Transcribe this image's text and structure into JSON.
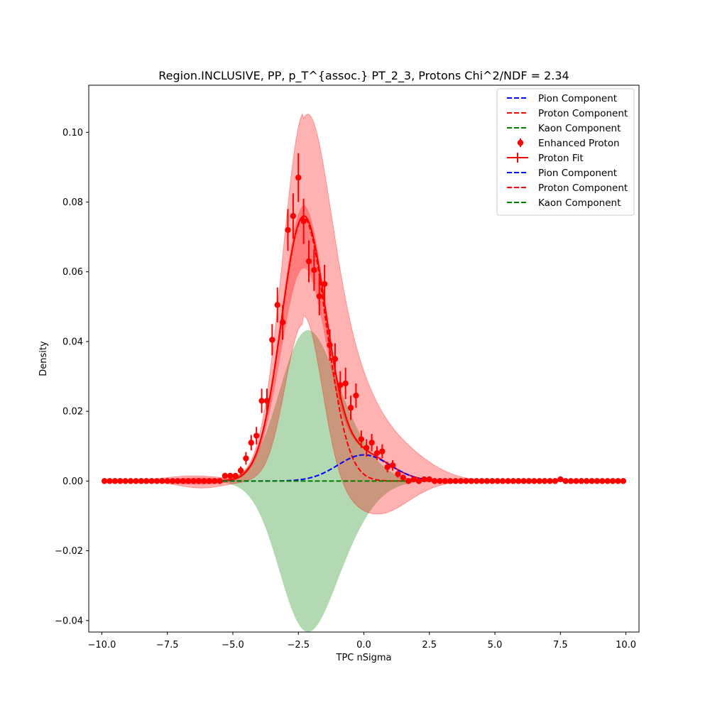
{
  "chart_data": {
    "type": "scatter",
    "title": "Region.INCLUSIVE, PP, p_T^{assoc.} PT_2_3, Protons Chi^2/NDF = 2.34",
    "xlabel": "TPC nSigma",
    "ylabel": "Density",
    "xlim": [
      -10.5,
      10.5
    ],
    "ylim": [
      -0.0433,
      0.1135
    ],
    "x_ticks": [
      -10,
      -7.5,
      -5,
      -2.5,
      0,
      2.5,
      5,
      7.5,
      10
    ],
    "x_tick_labels": [
      "−10.0",
      "−7.5",
      "−5.0",
      "−2.5",
      "0.0",
      "2.5",
      "5.0",
      "7.5",
      "10.0"
    ],
    "y_ticks": [
      -0.04,
      -0.02,
      0,
      0.02,
      0.04,
      0.06,
      0.08,
      0.1
    ],
    "y_tick_labels": [
      "−0.04",
      "−0.02",
      "0.00",
      "0.02",
      "0.04",
      "0.06",
      "0.08",
      "0.10"
    ],
    "grid": false,
    "legend_position": "top-right",
    "legend": [
      {
        "label": "Pion Component",
        "style": "dashed",
        "color": "#0000ff"
      },
      {
        "label": "Proton Component",
        "style": "dashed",
        "color": "#ff0000"
      },
      {
        "label": "Kaon Component",
        "style": "dashed",
        "color": "#008000"
      },
      {
        "label": "Enhanced Proton",
        "style": "marker",
        "color": "#ff0000"
      },
      {
        "label": "Proton Fit",
        "style": "errorline",
        "color": "#ff0000"
      },
      {
        "label": "Pion Component",
        "style": "dashed",
        "color": "#0000ff"
      },
      {
        "label": "Proton Component",
        "style": "dashed",
        "color": "#ff0000"
      },
      {
        "label": "Kaon Component",
        "style": "dashed",
        "color": "#008000"
      }
    ],
    "components": {
      "pion": {
        "amplitude": 0.0075,
        "mean": 0.0,
        "sigma": 1.0,
        "color": "#0000ff"
      },
      "proton": {
        "amplitude": 0.0755,
        "mean": -2.3,
        "sigma": 0.85,
        "color": "#ff0000"
      },
      "kaon": {
        "amplitude": 0.0,
        "mean": -1.5,
        "sigma": 1.0,
        "color": "#008000"
      }
    },
    "bands": {
      "proton_outer_peak": 0.106,
      "kaon_band": {
        "peak": 0.0365,
        "center": -2.0
      },
      "pion_band_peak": 0.0105
    },
    "series": [
      {
        "name": "Enhanced Proton",
        "color": "#ff0000",
        "x": [
          -9.9,
          -9.7,
          -9.5,
          -9.3,
          -9.1,
          -8.9,
          -8.7,
          -8.5,
          -8.3,
          -8.1,
          -7.9,
          -7.7,
          -7.5,
          -7.3,
          -7.1,
          -6.9,
          -6.7,
          -6.5,
          -6.3,
          -6.1,
          -5.9,
          -5.7,
          -5.5,
          -5.3,
          -5.1,
          -4.9,
          -4.7,
          -4.5,
          -4.3,
          -4.1,
          -3.9,
          -3.7,
          -3.5,
          -3.3,
          -3.1,
          -2.9,
          -2.7,
          -2.5,
          -2.3,
          -2.1,
          -1.9,
          -1.7,
          -1.5,
          -1.3,
          -1.1,
          -0.9,
          -0.7,
          -0.5,
          -0.3,
          -0.1,
          0.1,
          0.3,
          0.5,
          0.7,
          0.9,
          1.1,
          1.3,
          1.5,
          1.7,
          1.9,
          2.1,
          2.3,
          2.5,
          2.7,
          2.9,
          3.1,
          3.3,
          3.5,
          3.7,
          3.9,
          4.1,
          4.3,
          4.5,
          4.7,
          4.9,
          5.1,
          5.3,
          5.5,
          5.7,
          5.9,
          6.1,
          6.3,
          6.5,
          6.7,
          6.9,
          7.1,
          7.3,
          7.5,
          7.7,
          7.9,
          8.1,
          8.3,
          8.5,
          8.7,
          8.9,
          9.1,
          9.3,
          9.5,
          9.7,
          9.9
        ],
        "y": [
          0,
          0,
          0,
          0,
          0,
          0,
          0,
          0,
          0,
          0,
          0,
          0,
          0,
          0,
          0,
          0,
          0,
          0,
          0,
          0,
          0,
          0,
          0,
          0.0015,
          0.0015,
          0.0015,
          0.003,
          0.0065,
          0.011,
          0.013,
          0.023,
          0.023,
          0.0405,
          0.0505,
          0.0455,
          0.072,
          0.076,
          0.087,
          0.0745,
          0.063,
          0.0605,
          0.053,
          0.0565,
          0.039,
          0.035,
          0.0275,
          0.028,
          0.021,
          0.0245,
          0.012,
          0.0095,
          0.011,
          0.008,
          0.0085,
          0.004,
          0.0045,
          0.002,
          0.001,
          0,
          0.0005,
          0,
          0.0005,
          0.0005,
          0,
          0,
          0,
          0,
          0,
          0,
          0,
          0,
          0,
          0,
          0,
          0,
          0,
          0,
          0,
          0,
          0,
          0,
          0,
          0,
          0,
          0,
          0,
          0,
          0.0005,
          0,
          0,
          0,
          0,
          0,
          0,
          0,
          0,
          0,
          0,
          0,
          0
        ],
        "yerr": [
          0,
          0,
          0,
          0,
          0,
          0,
          0,
          0,
          0,
          0,
          0,
          0,
          0,
          0,
          0,
          0,
          0,
          0,
          0,
          0,
          0,
          0,
          0,
          0.0008,
          0.0008,
          0.0008,
          0.0012,
          0.0018,
          0.0022,
          0.0025,
          0.0035,
          0.0035,
          0.0045,
          0.005,
          0.005,
          0.006,
          0.0065,
          0.007,
          0.0065,
          0.006,
          0.006,
          0.0055,
          0.0055,
          0.0045,
          0.0045,
          0.004,
          0.0045,
          0.0035,
          0.0035,
          0.0025,
          0.0025,
          0.0025,
          0.002,
          0.002,
          0.0015,
          0.0015,
          0.001,
          0.0008,
          0,
          0.0005,
          0,
          0.0005,
          0.0005,
          0,
          0,
          0,
          0,
          0,
          0,
          0,
          0,
          0,
          0,
          0,
          0,
          0,
          0,
          0,
          0,
          0,
          0,
          0,
          0,
          0,
          0,
          0,
          0,
          0.0005,
          0,
          0,
          0,
          0,
          0,
          0,
          0,
          0,
          0,
          0,
          0,
          0
        ]
      }
    ]
  }
}
